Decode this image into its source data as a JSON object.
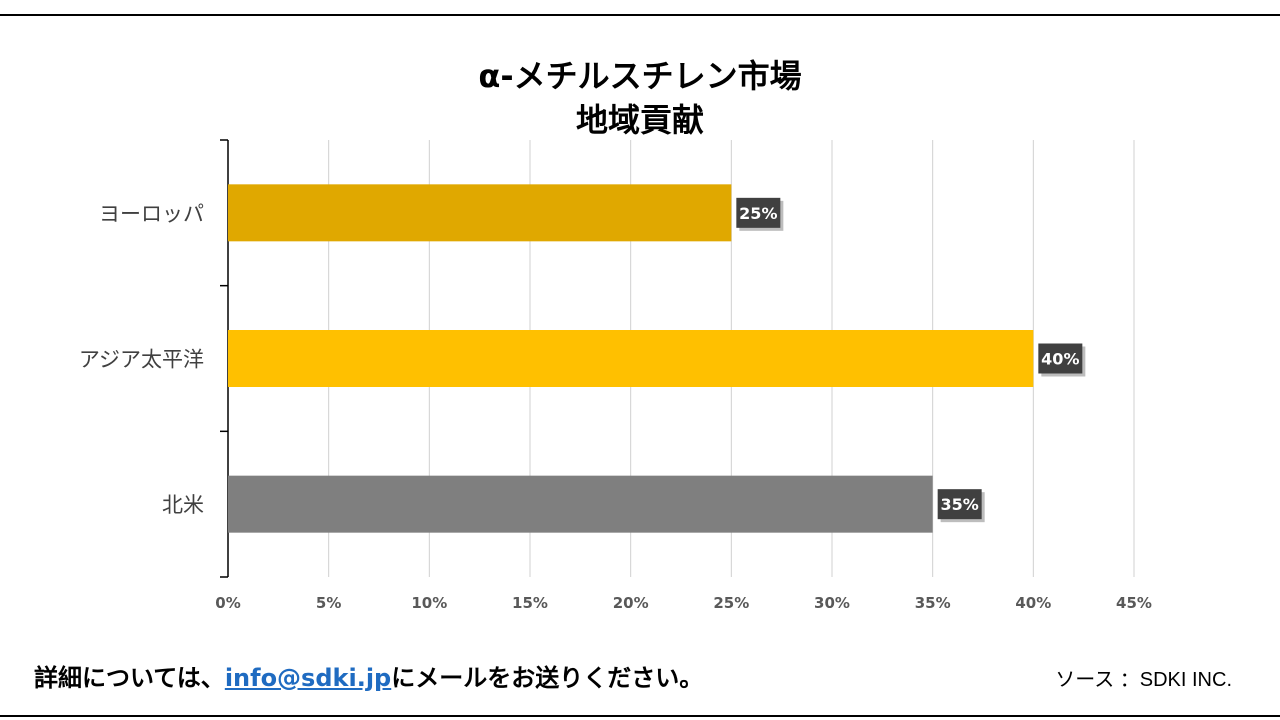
{
  "chart_data": {
    "type": "bar",
    "orientation": "horizontal",
    "title_line1": "α-メチルスチレン市場",
    "title_line2": "地域貢献",
    "categories": [
      "ヨーロッパ",
      "アジア太平洋",
      "北米"
    ],
    "values": [
      25,
      40,
      35
    ],
    "value_labels": [
      "25%",
      "40%",
      "35%"
    ],
    "bar_colors": [
      "#E0A800",
      "#FFC000",
      "#7F7F7F"
    ],
    "xlim": [
      0,
      45
    ],
    "x_ticks": [
      0,
      5,
      10,
      15,
      20,
      25,
      30,
      35,
      40,
      45
    ],
    "x_tick_labels": [
      "0%",
      "5%",
      "10%",
      "15%",
      "20%",
      "25%",
      "30%",
      "35%",
      "40%",
      "45%"
    ],
    "grid": true
  },
  "footer": {
    "contact_prefix": "詳細については、",
    "email": "info@sdki.jp",
    "contact_suffix": "にメールをお送りください。",
    "source": "ソース ：SDKI INC."
  }
}
